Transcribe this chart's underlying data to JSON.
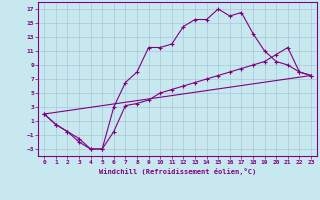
{
  "xlabel": "Windchill (Refroidissement éolien,°C)",
  "line_color": "#800080",
  "bg_color": "#c8e8f0",
  "grid_color": "#a8c8d8",
  "xlim": [
    -0.5,
    23.5
  ],
  "ylim": [
    -4.0,
    18.0
  ],
  "xticks": [
    0,
    1,
    2,
    3,
    4,
    5,
    6,
    7,
    8,
    9,
    10,
    11,
    12,
    13,
    14,
    15,
    16,
    17,
    18,
    19,
    20,
    21,
    22,
    23
  ],
  "yticks": [
    -3,
    -1,
    1,
    3,
    5,
    7,
    9,
    11,
    13,
    15,
    17
  ],
  "line1_x": [
    0,
    1,
    2,
    3,
    4,
    5,
    6,
    7,
    8,
    9,
    10,
    11,
    12,
    13,
    14,
    15,
    16,
    17,
    18,
    19,
    20,
    21,
    22,
    23
  ],
  "line1_y": [
    2,
    0.5,
    -0.5,
    -1.5,
    -3.0,
    -3.0,
    3.0,
    6.5,
    8.0,
    11.5,
    11.5,
    12.0,
    14.5,
    15.5,
    15.5,
    17.0,
    16.0,
    16.5,
    13.5,
    11.0,
    9.5,
    9.0,
    8.0,
    7.5
  ],
  "line2_x": [
    0,
    1,
    2,
    3,
    4,
    5,
    6,
    7,
    8,
    9,
    10,
    11,
    12,
    13,
    14,
    15,
    16,
    17,
    18,
    19,
    20,
    21,
    22,
    23
  ],
  "line2_y": [
    2,
    0.5,
    -0.5,
    -2.0,
    -3.0,
    -3.0,
    -0.5,
    3.2,
    3.5,
    4.0,
    5.0,
    5.5,
    6.0,
    6.5,
    7.0,
    7.5,
    8.0,
    8.5,
    9.0,
    9.5,
    10.5,
    11.5,
    8.0,
    7.5
  ],
  "line3_x": [
    0,
    23
  ],
  "line3_y": [
    2,
    7.5
  ]
}
